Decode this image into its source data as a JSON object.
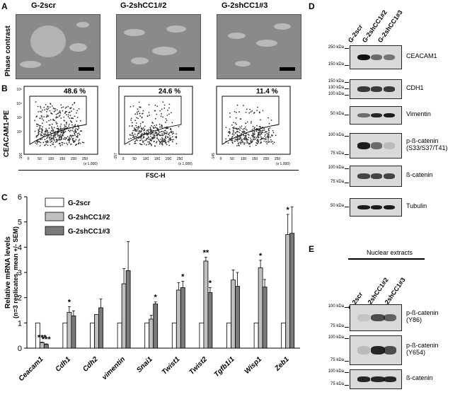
{
  "panels": {
    "A": "A",
    "B": "B",
    "C": "C",
    "D": "D",
    "E": "E"
  },
  "panelA": {
    "conditions": [
      "G-2scr",
      "G-2shCC1#2",
      "G-2shCC1#3"
    ],
    "ylabel": "Phase contrast"
  },
  "panelB": {
    "ylabel": "CEACAM1-PE",
    "xlabel": "FSC-H",
    "percents": [
      "48.6 %",
      "24.6 %",
      "11.4 %"
    ],
    "xticks": [
      "0",
      "50",
      "100",
      "150",
      "200",
      "250"
    ],
    "xunit": "(x 1,000)",
    "yticks_first": [
      "10⁵",
      "10⁴",
      "10³",
      "10²"
    ],
    "ybottom": [
      "-166",
      "-157",
      "-145"
    ]
  },
  "panelD": {
    "lanes": [
      "G-2scr",
      "G-2shCC1#2",
      "G-2shCC1#3"
    ],
    "blots": [
      {
        "protein": "CEACAM1",
        "kda": [
          "250 kDa",
          "150 kDa"
        ]
      },
      {
        "protein": "CDH1",
        "kda": [
          "150 kDa",
          "130 kDa",
          "100 kDa"
        ]
      },
      {
        "protein": "Vimentin",
        "kda": [
          "50 kDa"
        ]
      },
      {
        "protein": "p-ß-catenin",
        "protein2": "(S33/S37/T41)",
        "kda": [
          "100 kDa",
          "75 kDa"
        ]
      },
      {
        "protein": "ß-catenin",
        "kda": [
          "100 kDa",
          "75 kDa"
        ]
      },
      {
        "protein": "Tubulin",
        "kda": [
          "50 kDa"
        ]
      }
    ]
  },
  "panelE": {
    "title": "Nuclear extracts",
    "lanes": [
      "G-2scr",
      "G-2shCC1#2",
      "G-2shCC1#3"
    ],
    "blots": [
      {
        "protein": "p-ß-catenin",
        "protein2": "(Y86)",
        "kda": [
          "100 kDa",
          "75 kDa"
        ]
      },
      {
        "protein": "p-ß-catenin",
        "protein2": "(Y654)",
        "kda": [
          "100 kDa",
          "75 kDa"
        ]
      },
      {
        "protein": "ß-catenin",
        "kda": [
          "100 kDa",
          "75 kDa"
        ]
      }
    ]
  },
  "chart_data": {
    "type": "bar",
    "ylabel": "Relative mRNA levels",
    "ylabel2": "(n=3 replicates, mean +/- SEM)",
    "ylim": [
      0,
      6
    ],
    "yticks": [
      "0",
      "1",
      "2",
      "3",
      "4",
      "5",
      "6"
    ],
    "categories": [
      "Ceacam1",
      "Cdh1",
      "Cdh2",
      "vimentin",
      "Snai1",
      "Twist1",
      "Twist2",
      "Tgfb1i1",
      "Wisp1",
      "Zeb1"
    ],
    "series": [
      {
        "name": "G-2scr",
        "color": "#ffffff",
        "values": [
          1,
          1,
          1,
          1,
          1,
          1,
          1,
          1,
          1,
          1
        ],
        "err": [
          0,
          0,
          0,
          0,
          0,
          0,
          0,
          0,
          0,
          0
        ]
      },
      {
        "name": "G-2shCC1#2",
        "color": "#bfbfbf",
        "values": [
          0.22,
          1.42,
          1.33,
          2.55,
          1.15,
          2.3,
          3.45,
          2.7,
          3.18,
          4.5
        ],
        "err": [
          0.02,
          0.22,
          0,
          0.6,
          0.15,
          0.3,
          0.15,
          0.4,
          0.3,
          0.8
        ]
      },
      {
        "name": "G-2shCC1#3",
        "color": "#7a7a7a",
        "values": [
          0.15,
          1.28,
          1.6,
          3.07,
          1.75,
          2.4,
          2.2,
          2.45,
          2.42,
          4.55
        ],
        "err": [
          0.02,
          0.2,
          0.35,
          1.15,
          0.08,
          0.25,
          0.2,
          0.55,
          0.3,
          1.05
        ]
      }
    ],
    "significance": [
      {
        "cat": 0,
        "series": 1,
        "label": "***"
      },
      {
        "cat": 0,
        "series": 2,
        "label": "***"
      },
      {
        "cat": 1,
        "series": 1,
        "label": "*"
      },
      {
        "cat": 4,
        "series": 2,
        "label": "*"
      },
      {
        "cat": 5,
        "series": 2,
        "label": "*"
      },
      {
        "cat": 6,
        "series": 1,
        "label": "**"
      },
      {
        "cat": 6,
        "series": 2,
        "label": "*"
      },
      {
        "cat": 8,
        "series": 1,
        "label": "*"
      },
      {
        "cat": 9,
        "series": 1,
        "label": "*"
      }
    ]
  }
}
